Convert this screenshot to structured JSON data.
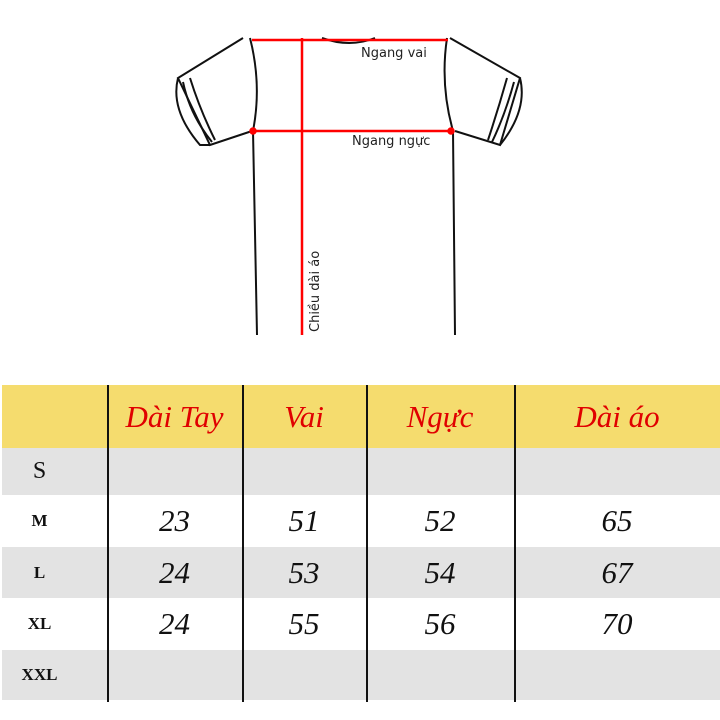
{
  "diagram": {
    "labels": {
      "shoulder": "Ngang vai",
      "chest": "Ngang ngực",
      "length": "Chiều dài áo"
    },
    "accent_color": "#ff0000"
  },
  "table": {
    "header_color": "#f5dc6e",
    "header_text_color": "#e00000",
    "stripe_color": "#e3e3e3",
    "headers": [
      "",
      "Dài Tay",
      "Vai",
      "Ngực",
      "Dài áo"
    ],
    "rows": [
      {
        "size": "S",
        "values": [
          "",
          "",
          "",
          ""
        ]
      },
      {
        "size": "M",
        "values": [
          "23",
          "51",
          "52",
          "65"
        ]
      },
      {
        "size": "L",
        "values": [
          "24",
          "53",
          "54",
          "67"
        ]
      },
      {
        "size": "XL",
        "values": [
          "24",
          "55",
          "56",
          "70"
        ]
      },
      {
        "size": "XXL",
        "values": [
          "",
          "",
          "",
          ""
        ]
      }
    ]
  }
}
